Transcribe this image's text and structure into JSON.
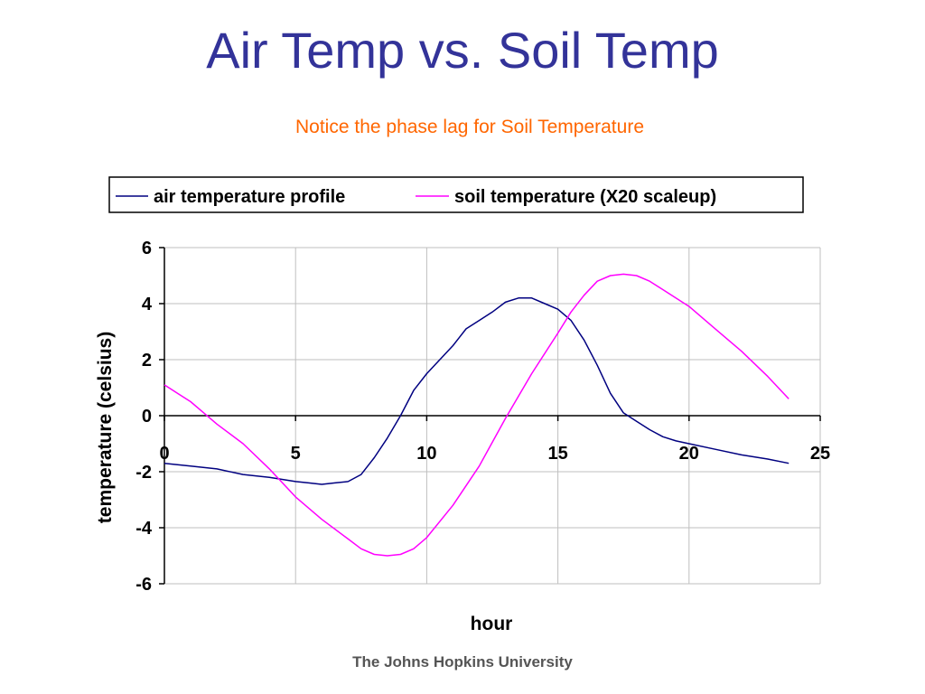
{
  "slide": {
    "title": "Air Temp vs. Soil Temp",
    "subtitle": "Notice the phase lag for Soil Temperature",
    "footer": "The Johns Hopkins University",
    "title_color": "#333399",
    "subtitle_color": "#ff6600"
  },
  "chart_data": {
    "type": "line",
    "xlabel": "hour",
    "ylabel": "temperature (celsius)",
    "xlim": [
      0,
      25
    ],
    "ylim": [
      -6,
      6
    ],
    "xticks": [
      0,
      5,
      10,
      15,
      20,
      25
    ],
    "yticks": [
      6,
      4,
      2,
      0,
      -2,
      -4,
      -6
    ],
    "grid": true,
    "legend_position": "top",
    "series": [
      {
        "name": "air temperature profile",
        "color": "#000080",
        "x": [
          0,
          1,
          2,
          3,
          4,
          5,
          5.5,
          6,
          6.5,
          7,
          7.5,
          8,
          8.5,
          9,
          9.5,
          10,
          10.5,
          11,
          11.5,
          12,
          12.5,
          13,
          13.5,
          14,
          14.5,
          15,
          15.5,
          16,
          16.5,
          17,
          17.5,
          18,
          18.5,
          19,
          19.5,
          20,
          21,
          22,
          23,
          23.8
        ],
        "values": [
          -1.7,
          -1.8,
          -1.9,
          -2.1,
          -2.2,
          -2.35,
          -2.4,
          -2.45,
          -2.4,
          -2.35,
          -2.1,
          -1.5,
          -0.8,
          0.0,
          0.9,
          1.5,
          2.0,
          2.5,
          3.1,
          3.4,
          3.7,
          4.05,
          4.2,
          4.2,
          4.0,
          3.8,
          3.4,
          2.7,
          1.8,
          0.8,
          0.1,
          -0.2,
          -0.5,
          -0.75,
          -0.9,
          -1.0,
          -1.2,
          -1.4,
          -1.55,
          -1.7
        ]
      },
      {
        "name": "soil temperature (X20 scaleup)",
        "color": "#ff00ff",
        "x": [
          0,
          0.5,
          1,
          1.5,
          2,
          3,
          4,
          5,
          6,
          7,
          7.5,
          8,
          8.5,
          9,
          9.5,
          10,
          11,
          12,
          13,
          14,
          15,
          15.5,
          16,
          16.5,
          17,
          17.5,
          18,
          18.5,
          19,
          20,
          21,
          22,
          23,
          23.8
        ],
        "values": [
          1.1,
          0.8,
          0.5,
          0.1,
          -0.3,
          -1.0,
          -1.9,
          -2.9,
          -3.7,
          -4.4,
          -4.75,
          -4.95,
          -5.0,
          -4.95,
          -4.75,
          -4.35,
          -3.2,
          -1.8,
          -0.1,
          1.5,
          2.95,
          3.7,
          4.3,
          4.8,
          5.0,
          5.05,
          5.0,
          4.8,
          4.5,
          3.9,
          3.1,
          2.3,
          1.4,
          0.6
        ]
      }
    ]
  }
}
